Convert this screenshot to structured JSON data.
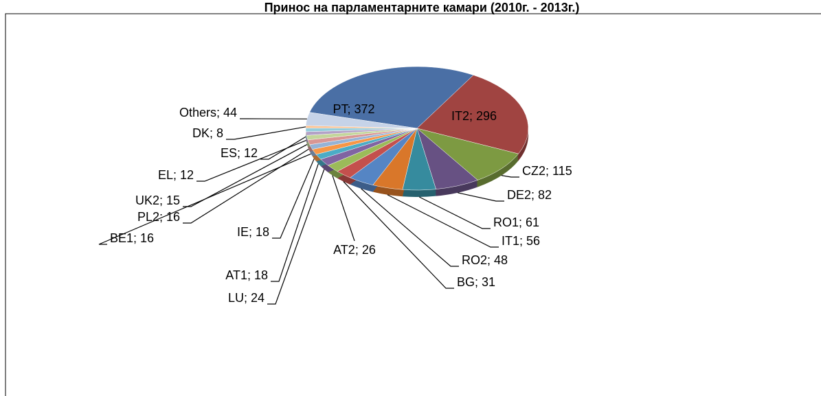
{
  "chart_data": {
    "type": "pie",
    "title": "Принос на парламентарните камари (2010г. - 2013г.)",
    "categories": [
      "PT",
      "IT2",
      "CZ2",
      "DE2",
      "RO1",
      "IT1",
      "RO2",
      "BG",
      "AT2",
      "LU",
      "AT1",
      "IE",
      "BE1",
      "PL2",
      "UK2",
      "EL",
      "ES",
      "DK",
      "Others"
    ],
    "values": [
      372,
      296,
      115,
      82,
      61,
      56,
      48,
      31,
      26,
      24,
      18,
      18,
      16,
      16,
      15,
      12,
      12,
      8,
      44
    ],
    "value_labels": [
      "PT; 372",
      "IT2; 296",
      "CZ2; 115",
      "DE2; 82",
      "RO1; 61",
      "IT1; 56",
      "RO2; 48",
      "BG; 31",
      "AT2; 26",
      "LU; 24",
      "AT1; 18",
      "IE; 18",
      "BE1; 16",
      "PL2; 16",
      "UK2; 15",
      "EL; 12",
      "ES; 12",
      "DK; 8",
      "Others; 44"
    ],
    "colors": [
      "#4a6fa5",
      "#a04441",
      "#7d9a42",
      "#675183",
      "#368b9e",
      "#d9772a",
      "#5585c4",
      "#c4504d",
      "#9bbb59",
      "#8064a2",
      "#4bacc6",
      "#f79646",
      "#95b3d7",
      "#d99694",
      "#c3d69b",
      "#b3a2c7",
      "#93cddd",
      "#fac090",
      "#c6d3e8"
    ]
  }
}
